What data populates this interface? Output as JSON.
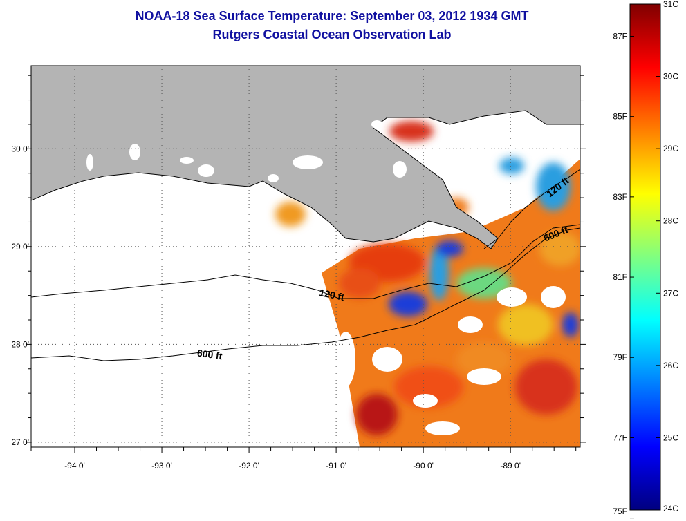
{
  "header": {
    "title": "NOAA-18 Sea Surface Temperature:  September 03, 2012 1934 GMT",
    "subtitle": "Rutgers Coastal Ocean Observation Lab"
  },
  "map": {
    "lon_range": [
      -94.5,
      -88.2
    ],
    "lat_range": [
      26.95,
      30.85
    ],
    "lon_ticks": [
      {
        "value": -94,
        "label": "-94 0'"
      },
      {
        "value": -93,
        "label": "-93 0'"
      },
      {
        "value": -92,
        "label": "-92 0'"
      },
      {
        "value": -91,
        "label": "-91 0'"
      },
      {
        "value": -90,
        "label": "-90 0'"
      },
      {
        "value": -89,
        "label": "-89 0'"
      }
    ],
    "lat_ticks": [
      {
        "value": 30,
        "label": "30 0'"
      },
      {
        "value": 29,
        "label": "29 0'"
      },
      {
        "value": 28,
        "label": "28 0'"
      },
      {
        "value": 27,
        "label": "27 0'"
      }
    ],
    "contour_labels": [
      {
        "text": "120 ft",
        "lon": -91.2,
        "lat": 28.5,
        "angle": 12
      },
      {
        "text": "600 ft",
        "lon": -92.6,
        "lat": 27.88,
        "angle": 8
      },
      {
        "text": "600 ft",
        "lon": -88.6,
        "lat": 29.05,
        "angle": -22
      },
      {
        "text": "120 ft",
        "lon": -88.55,
        "lat": 29.5,
        "angle": -38
      }
    ],
    "colors": {
      "land": "#b4b4b4",
      "frame": "#000000",
      "grid": "#555555"
    }
  },
  "colorbar": {
    "min_c": 24,
    "max_c": 31,
    "c_labels": [
      "31C",
      "30C",
      "29C",
      "28C",
      "27C",
      "26C",
      "25C",
      "24C"
    ],
    "f_labels": [
      "87F",
      "85F",
      "83F",
      "81F",
      "79F",
      "77F",
      "75F"
    ],
    "f_values": [
      87,
      85,
      83,
      81,
      79,
      77,
      75
    ]
  }
}
